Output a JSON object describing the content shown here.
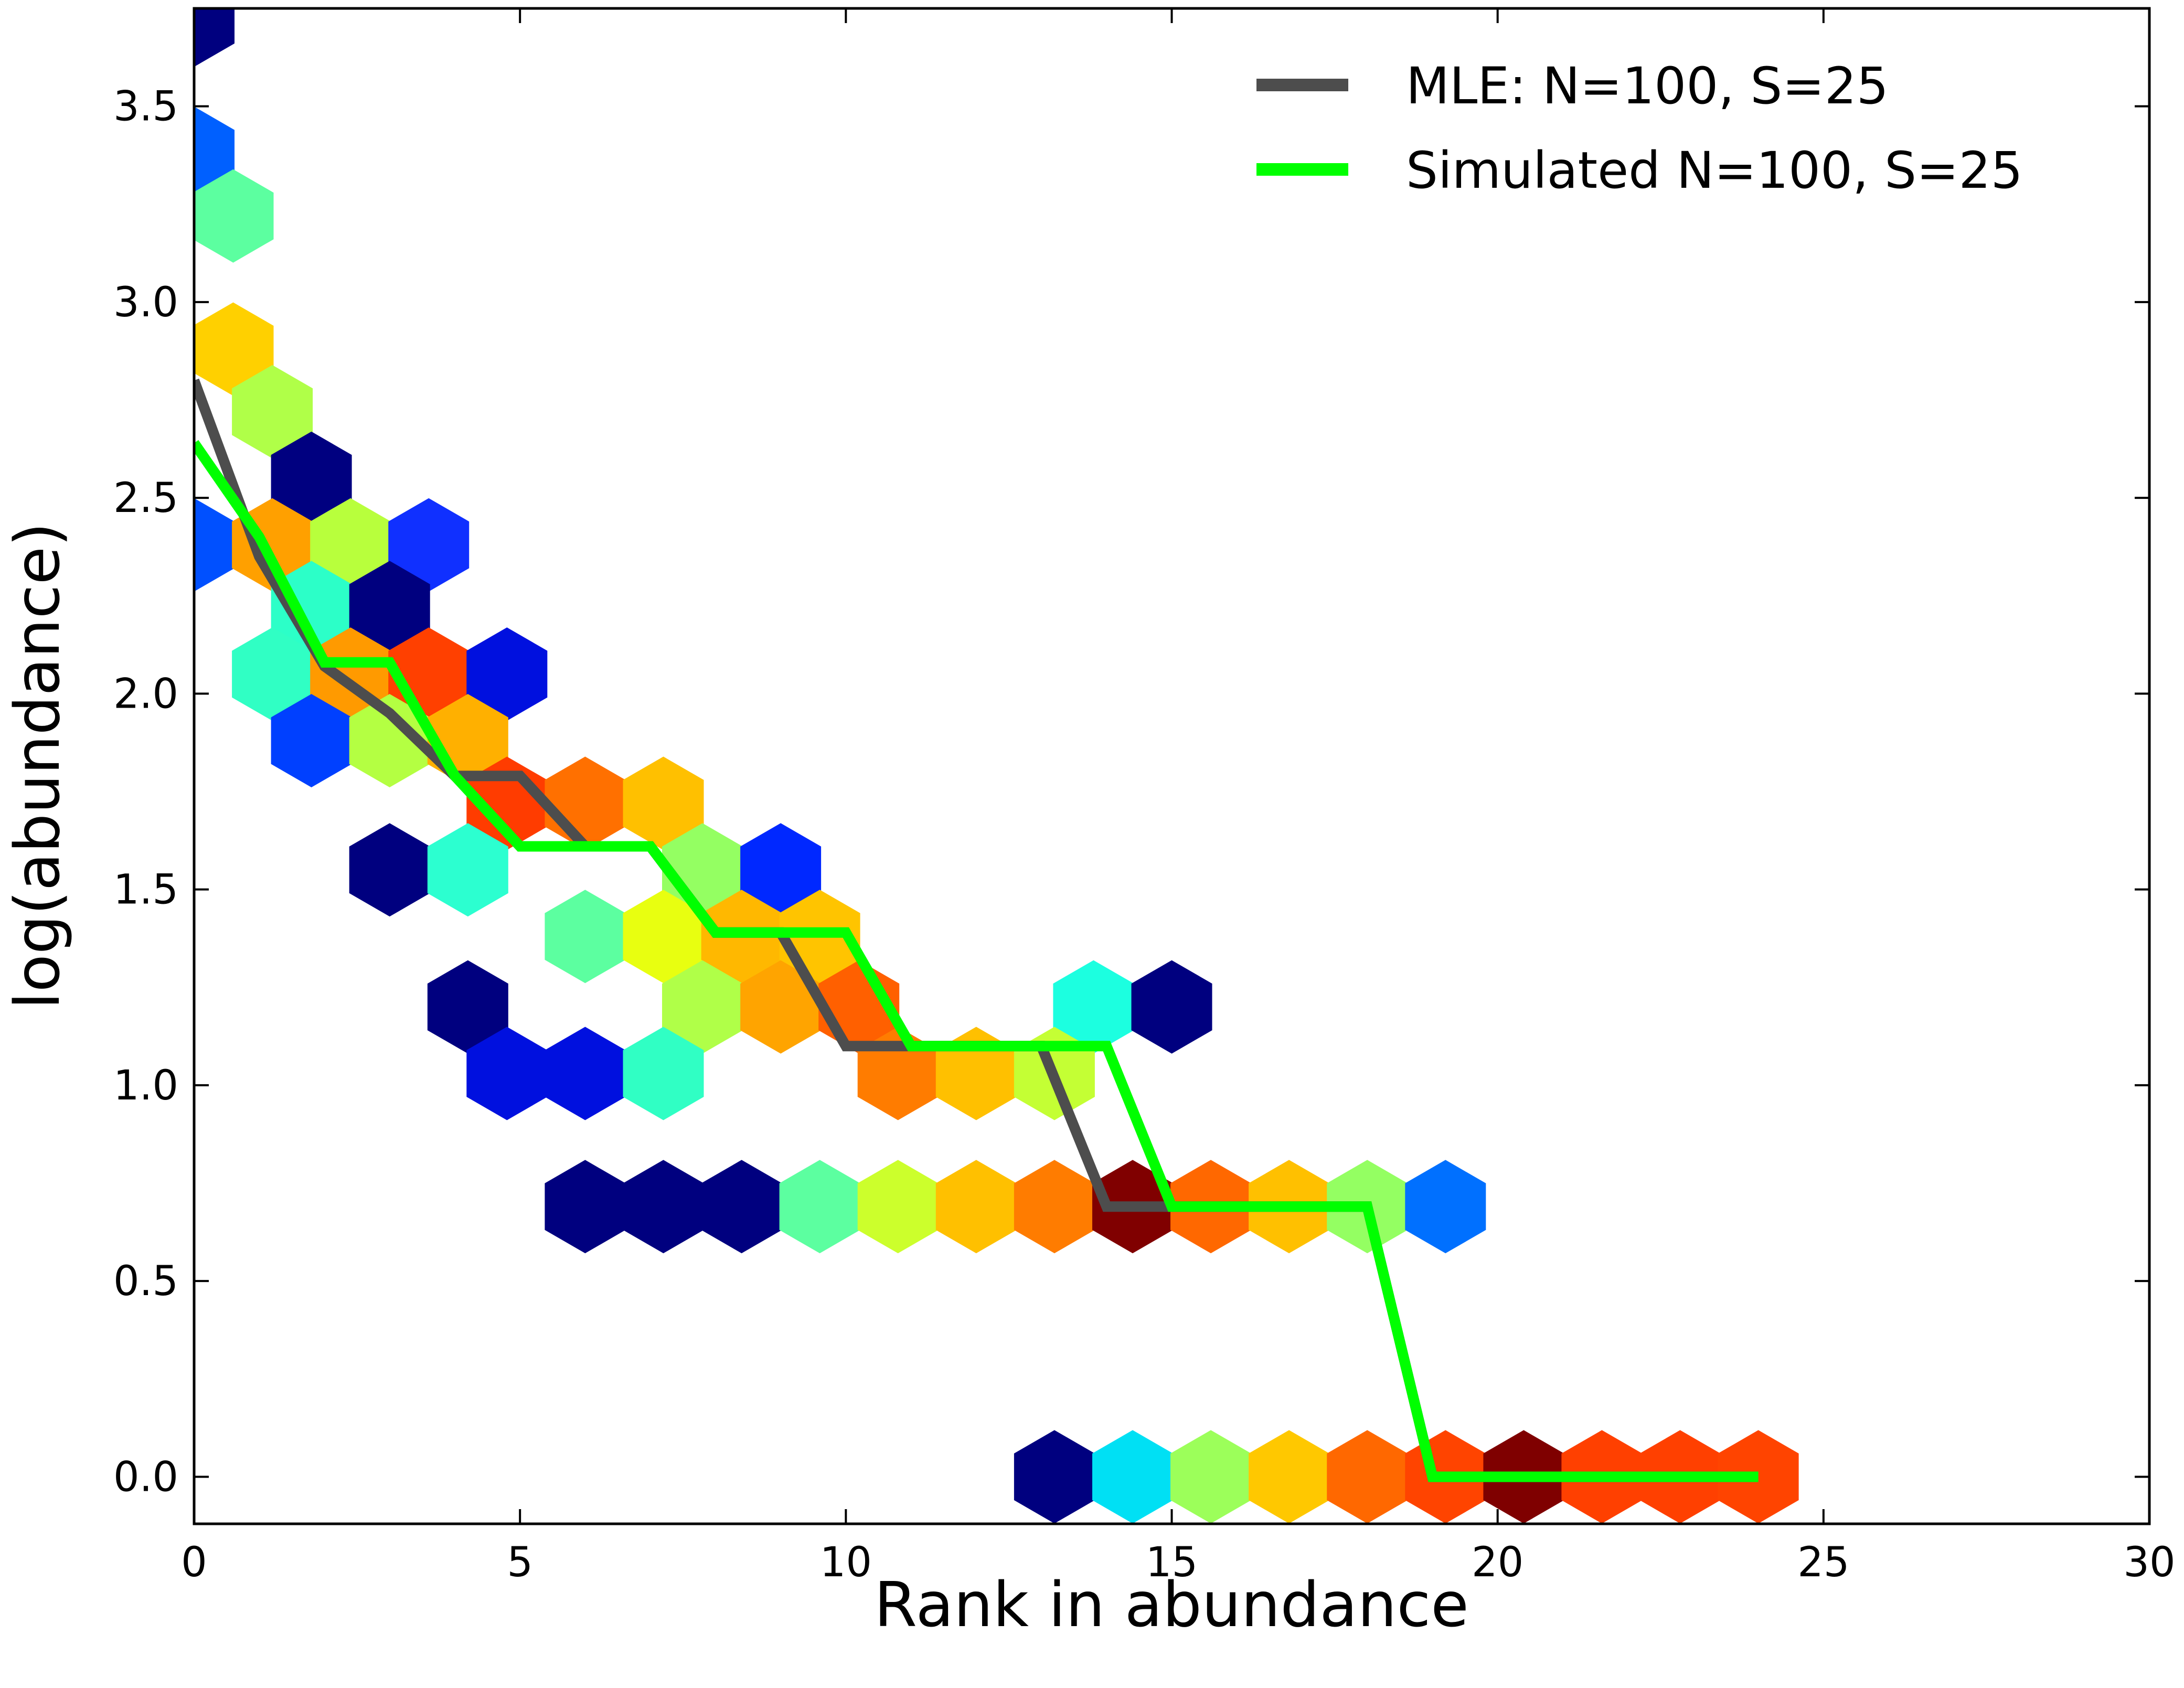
{
  "chart_data": {
    "type": "hexbin",
    "title": "",
    "xlabel": "Rank in abundance",
    "ylabel": "log(abundance)",
    "xlim": [
      0,
      30
    ],
    "ylim": [
      -0.12,
      3.75
    ],
    "xticks": [
      0,
      5,
      10,
      15,
      20,
      25,
      30
    ],
    "yticks": [
      0.0,
      0.5,
      1.0,
      1.5,
      2.0,
      2.5,
      3.0,
      3.5
    ],
    "xtick_labels": [
      "0",
      "5",
      "10",
      "15",
      "20",
      "25",
      "30"
    ],
    "ytick_labels": [
      "0.0",
      "0.5",
      "1.0",
      "1.5",
      "2.0",
      "2.5",
      "3.0",
      "3.5"
    ],
    "grid": false,
    "legend_position": "top-right",
    "colormap": "jet",
    "hexbins": [
      {
        "x": 0.0,
        "y": 3.72,
        "color": "#00007f"
      },
      {
        "x": 0.0,
        "y": 3.38,
        "color": "#0060ff"
      },
      {
        "x": 0.6,
        "y": 3.22,
        "color": "#5cffa0"
      },
      {
        "x": 0.6,
        "y": 2.88,
        "color": "#ffd000"
      },
      {
        "x": 1.2,
        "y": 2.72,
        "color": "#b0ff48"
      },
      {
        "x": 1.8,
        "y": 2.55,
        "color": "#000080"
      },
      {
        "x": 0.0,
        "y": 2.38,
        "color": "#0050ff"
      },
      {
        "x": 1.2,
        "y": 2.38,
        "color": "#ffa000"
      },
      {
        "x": 2.4,
        "y": 2.38,
        "color": "#b8ff3c"
      },
      {
        "x": 3.6,
        "y": 2.38,
        "color": "#1030ff"
      },
      {
        "x": 1.8,
        "y": 2.22,
        "color": "#2cffc8"
      },
      {
        "x": 3.0,
        "y": 2.22,
        "color": "#00007f"
      },
      {
        "x": 1.2,
        "y": 2.05,
        "color": "#30ffc4"
      },
      {
        "x": 2.4,
        "y": 2.05,
        "color": "#ff9a00"
      },
      {
        "x": 3.6,
        "y": 2.05,
        "color": "#ff4000"
      },
      {
        "x": 4.8,
        "y": 2.05,
        "color": "#0010df"
      },
      {
        "x": 1.8,
        "y": 1.88,
        "color": "#0040ff"
      },
      {
        "x": 3.0,
        "y": 1.88,
        "color": "#b4ff42"
      },
      {
        "x": 4.2,
        "y": 1.88,
        "color": "#ffb000"
      },
      {
        "x": 4.8,
        "y": 1.72,
        "color": "#ff3c00"
      },
      {
        "x": 6.0,
        "y": 1.72,
        "color": "#ff7000"
      },
      {
        "x": 7.2,
        "y": 1.72,
        "color": "#ffc000"
      },
      {
        "x": 3.0,
        "y": 1.55,
        "color": "#00007f"
      },
      {
        "x": 4.2,
        "y": 1.55,
        "color": "#2cffd0"
      },
      {
        "x": 7.8,
        "y": 1.55,
        "color": "#94ff62"
      },
      {
        "x": 9.0,
        "y": 1.55,
        "color": "#0028ff"
      },
      {
        "x": 6.0,
        "y": 1.38,
        "color": "#5cffa0"
      },
      {
        "x": 7.2,
        "y": 1.38,
        "color": "#e8ff10"
      },
      {
        "x": 8.4,
        "y": 1.38,
        "color": "#ffb800"
      },
      {
        "x": 9.6,
        "y": 1.38,
        "color": "#ffc400"
      },
      {
        "x": 4.2,
        "y": 1.2,
        "color": "#00007f"
      },
      {
        "x": 7.8,
        "y": 1.2,
        "color": "#b0ff48"
      },
      {
        "x": 9.0,
        "y": 1.2,
        "color": "#ffa400"
      },
      {
        "x": 10.2,
        "y": 1.2,
        "color": "#ff6000"
      },
      {
        "x": 13.8,
        "y": 1.2,
        "color": "#1cffe0"
      },
      {
        "x": 15.0,
        "y": 1.2,
        "color": "#00007f"
      },
      {
        "x": 4.8,
        "y": 1.03,
        "color": "#0010df"
      },
      {
        "x": 6.0,
        "y": 1.03,
        "color": "#0010df"
      },
      {
        "x": 7.2,
        "y": 1.03,
        "color": "#30ffc4"
      },
      {
        "x": 10.8,
        "y": 1.03,
        "color": "#ff7c00"
      },
      {
        "x": 12.0,
        "y": 1.03,
        "color": "#ffc000"
      },
      {
        "x": 13.2,
        "y": 1.03,
        "color": "#c4ff34"
      },
      {
        "x": 6.0,
        "y": 0.69,
        "color": "#00007f"
      },
      {
        "x": 7.2,
        "y": 0.69,
        "color": "#00007f"
      },
      {
        "x": 8.4,
        "y": 0.69,
        "color": "#00007f"
      },
      {
        "x": 9.6,
        "y": 0.69,
        "color": "#5cffa0"
      },
      {
        "x": 10.8,
        "y": 0.69,
        "color": "#ccff2c"
      },
      {
        "x": 12.0,
        "y": 0.69,
        "color": "#ffc000"
      },
      {
        "x": 13.2,
        "y": 0.69,
        "color": "#ff7c00"
      },
      {
        "x": 14.4,
        "y": 0.69,
        "color": "#800000"
      },
      {
        "x": 15.6,
        "y": 0.69,
        "color": "#ff6800"
      },
      {
        "x": 16.8,
        "y": 0.69,
        "color": "#ffc000"
      },
      {
        "x": 18.0,
        "y": 0.69,
        "color": "#94ff62"
      },
      {
        "x": 19.2,
        "y": 0.69,
        "color": "#0070ff"
      },
      {
        "x": 13.2,
        "y": 0.0,
        "color": "#00007f"
      },
      {
        "x": 14.4,
        "y": 0.0,
        "color": "#00e0f4"
      },
      {
        "x": 15.6,
        "y": 0.0,
        "color": "#9cff5a"
      },
      {
        "x": 16.8,
        "y": 0.0,
        "color": "#ffc800"
      },
      {
        "x": 18.0,
        "y": 0.0,
        "color": "#ff6800"
      },
      {
        "x": 19.2,
        "y": 0.0,
        "color": "#ff4400"
      },
      {
        "x": 20.4,
        "y": 0.0,
        "color": "#7f0000"
      },
      {
        "x": 21.6,
        "y": 0.0,
        "color": "#ff4000"
      },
      {
        "x": 22.8,
        "y": 0.0,
        "color": "#ff4000"
      },
      {
        "x": 24.0,
        "y": 0.0,
        "color": "#ff4400"
      }
    ],
    "series": [
      {
        "name": "MLE: N=100, S=25",
        "color": "#4d4d4d",
        "x": [
          0,
          1,
          2,
          3,
          4,
          5,
          6,
          7,
          8,
          9,
          10,
          11,
          12,
          13,
          14,
          15,
          16,
          17,
          18,
          19,
          20,
          21,
          22,
          23,
          24
        ],
        "y": [
          2.8,
          2.35,
          2.07,
          1.95,
          1.79,
          1.79,
          1.61,
          1.61,
          1.39,
          1.39,
          1.1,
          1.1,
          1.1,
          1.1,
          0.69,
          0.69,
          0.69,
          0.69,
          0.69,
          0.0,
          0.0,
          0.0,
          0.0,
          0.0,
          0.0
        ]
      },
      {
        "name": "Simulated N=100, S=25",
        "color": "#00ff00",
        "x": [
          0,
          1,
          2,
          3,
          4,
          5,
          6,
          7,
          8,
          9,
          10,
          11,
          12,
          13,
          14,
          15,
          16,
          17,
          18,
          19,
          20,
          21,
          22,
          23,
          24
        ],
        "y": [
          2.64,
          2.4,
          2.08,
          2.08,
          1.79,
          1.61,
          1.61,
          1.61,
          1.39,
          1.39,
          1.39,
          1.1,
          1.1,
          1.1,
          1.1,
          0.69,
          0.69,
          0.69,
          0.69,
          0.0,
          0.0,
          0.0,
          0.0,
          0.0,
          0.0
        ]
      }
    ]
  }
}
